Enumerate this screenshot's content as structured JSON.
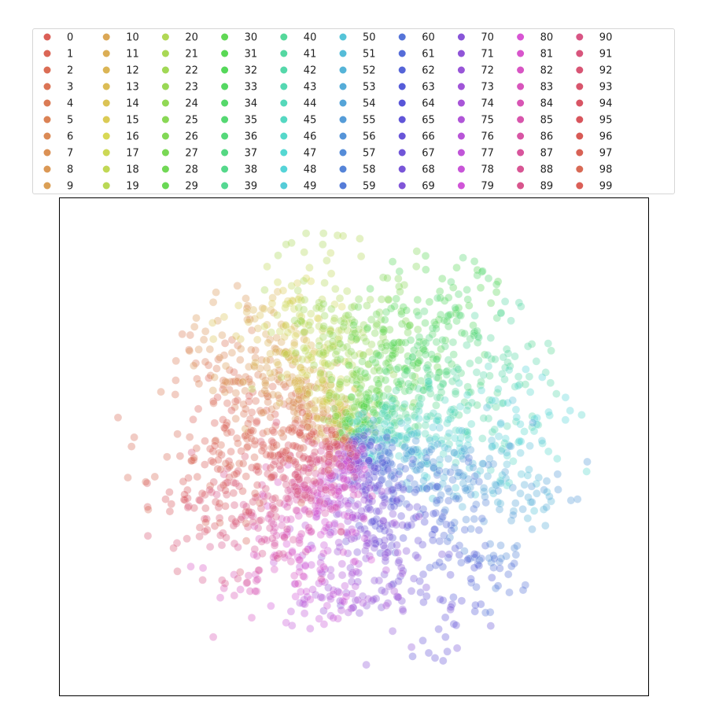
{
  "chart_data": {
    "type": "scatter",
    "title": "",
    "xlabel": "",
    "ylabel": "",
    "grid": false,
    "axes_ticks": false,
    "legend_placement": "top (above plot, 10 columns)",
    "point_alpha": 0.35,
    "series_count": 100,
    "series": [
      {
        "name": "0",
        "color": "#db5f57"
      },
      {
        "name": "1",
        "color": "#db6656"
      },
      {
        "name": "2",
        "color": "#db6d55"
      },
      {
        "name": "3",
        "color": "#db7455"
      },
      {
        "name": "4",
        "color": "#db7b55"
      },
      {
        "name": "5",
        "color": "#db8255"
      },
      {
        "name": "6",
        "color": "#db8a55"
      },
      {
        "name": "7",
        "color": "#db9155"
      },
      {
        "name": "8",
        "color": "#db9855"
      },
      {
        "name": "9",
        "color": "#db9f55"
      },
      {
        "name": "10",
        "color": "#dba755"
      },
      {
        "name": "11",
        "color": "#dbae55"
      },
      {
        "name": "12",
        "color": "#dbb555"
      },
      {
        "name": "13",
        "color": "#dbbc55"
      },
      {
        "name": "14",
        "color": "#dbc355"
      },
      {
        "name": "15",
        "color": "#dbcb55"
      },
      {
        "name": "16",
        "color": "#d8d855"
      },
      {
        "name": "17",
        "color": "#ccd855"
      },
      {
        "name": "18",
        "color": "#c1d855"
      },
      {
        "name": "19",
        "color": "#b9d855"
      },
      {
        "name": "20",
        "color": "#b1d855"
      },
      {
        "name": "21",
        "color": "#a9d855"
      },
      {
        "name": "22",
        "color": "#a1d855"
      },
      {
        "name": "23",
        "color": "#99d855"
      },
      {
        "name": "24",
        "color": "#91d855"
      },
      {
        "name": "25",
        "color": "#89d855"
      },
      {
        "name": "26",
        "color": "#81d855"
      },
      {
        "name": "27",
        "color": "#79d855"
      },
      {
        "name": "28",
        "color": "#71d855"
      },
      {
        "name": "29",
        "color": "#69d855"
      },
      {
        "name": "30",
        "color": "#61d855"
      },
      {
        "name": "31",
        "color": "#59d855"
      },
      {
        "name": "32",
        "color": "#55d85a"
      },
      {
        "name": "33",
        "color": "#55d862"
      },
      {
        "name": "34",
        "color": "#55d86a"
      },
      {
        "name": "35",
        "color": "#55d872"
      },
      {
        "name": "36",
        "color": "#55d87a"
      },
      {
        "name": "37",
        "color": "#55d882"
      },
      {
        "name": "38",
        "color": "#55d88a"
      },
      {
        "name": "39",
        "color": "#55d892"
      },
      {
        "name": "40",
        "color": "#55d89a"
      },
      {
        "name": "41",
        "color": "#55d8a2"
      },
      {
        "name": "42",
        "color": "#55d8aa"
      },
      {
        "name": "43",
        "color": "#55d8b2"
      },
      {
        "name": "44",
        "color": "#55d8ba"
      },
      {
        "name": "45",
        "color": "#55d8c2"
      },
      {
        "name": "46",
        "color": "#55d8ca"
      },
      {
        "name": "47",
        "color": "#55d8d2"
      },
      {
        "name": "48",
        "color": "#55d4d8"
      },
      {
        "name": "49",
        "color": "#55ccd8"
      },
      {
        "name": "50",
        "color": "#55c4d8"
      },
      {
        "name": "51",
        "color": "#55bcd8"
      },
      {
        "name": "52",
        "color": "#55b4d8"
      },
      {
        "name": "53",
        "color": "#55acd8"
      },
      {
        "name": "54",
        "color": "#55a4d8"
      },
      {
        "name": "55",
        "color": "#559cd8"
      },
      {
        "name": "56",
        "color": "#5594d8"
      },
      {
        "name": "57",
        "color": "#558cd8"
      },
      {
        "name": "58",
        "color": "#5584d8"
      },
      {
        "name": "59",
        "color": "#557cd8"
      },
      {
        "name": "60",
        "color": "#5574d8"
      },
      {
        "name": "61",
        "color": "#556cd8"
      },
      {
        "name": "62",
        "color": "#5564d8"
      },
      {
        "name": "63",
        "color": "#555cd8"
      },
      {
        "name": "64",
        "color": "#5855d8"
      },
      {
        "name": "65",
        "color": "#6055d8"
      },
      {
        "name": "66",
        "color": "#6855d8"
      },
      {
        "name": "67",
        "color": "#7055d8"
      },
      {
        "name": "68",
        "color": "#7855d8"
      },
      {
        "name": "69",
        "color": "#8055d8"
      },
      {
        "name": "70",
        "color": "#8855d8"
      },
      {
        "name": "71",
        "color": "#9055d8"
      },
      {
        "name": "72",
        "color": "#9855d8"
      },
      {
        "name": "73",
        "color": "#a055d8"
      },
      {
        "name": "74",
        "color": "#a855d8"
      },
      {
        "name": "75",
        "color": "#b055d8"
      },
      {
        "name": "76",
        "color": "#b855d8"
      },
      {
        "name": "77",
        "color": "#c055d8"
      },
      {
        "name": "78",
        "color": "#c855d8"
      },
      {
        "name": "79",
        "color": "#d055d8"
      },
      {
        "name": "80",
        "color": "#d855d4"
      },
      {
        "name": "81",
        "color": "#d855cc"
      },
      {
        "name": "82",
        "color": "#d855c4"
      },
      {
        "name": "83",
        "color": "#d855bc"
      },
      {
        "name": "84",
        "color": "#d855b4"
      },
      {
        "name": "85",
        "color": "#d855ac"
      },
      {
        "name": "86",
        "color": "#d855a4"
      },
      {
        "name": "87",
        "color": "#d8559c"
      },
      {
        "name": "88",
        "color": "#d85594"
      },
      {
        "name": "89",
        "color": "#d8558c"
      },
      {
        "name": "90",
        "color": "#d85584"
      },
      {
        "name": "91",
        "color": "#d8557c"
      },
      {
        "name": "92",
        "color": "#d85574"
      },
      {
        "name": "93",
        "color": "#d8556c"
      },
      {
        "name": "94",
        "color": "#d85564"
      },
      {
        "name": "95",
        "color": "#d8555c"
      },
      {
        "name": "96",
        "color": "#d85a55"
      },
      {
        "name": "97",
        "color": "#d86255"
      },
      {
        "name": "98",
        "color": "#d86a55"
      },
      {
        "name": "99",
        "color": "#db5f57"
      }
    ]
  }
}
